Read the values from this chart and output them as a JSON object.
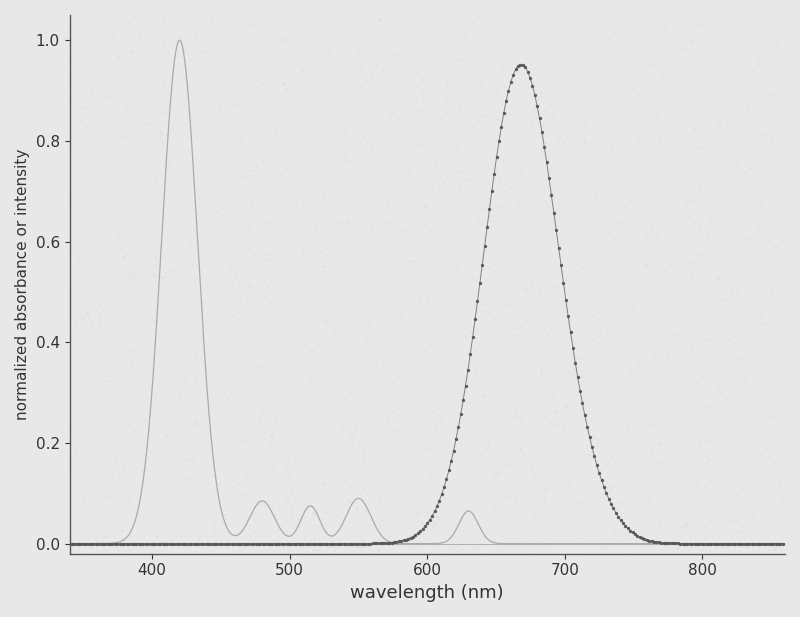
{
  "title": "",
  "xlabel": "wavelength (nm)",
  "ylabel": "normalized absorbance or intensity",
  "xlim": [
    340,
    860
  ],
  "ylim": [
    -0.02,
    1.05
  ],
  "xticks": [
    400,
    500,
    600,
    700,
    800
  ],
  "yticks": [
    0.0,
    0.2,
    0.4,
    0.6,
    0.8,
    1.0
  ],
  "curve1_color": "#aaaaaa",
  "curve2_color": "#555555",
  "bg_color": "#e8e8e8",
  "figsize": [
    8.0,
    6.17
  ],
  "dpi": 100,
  "soret_peak": 420,
  "soret_sigma": 13,
  "soret_amp": 1.0,
  "qband1_peak": 480,
  "qband1_sigma": 9,
  "qband1_amp": 0.085,
  "qband2_peak": 515,
  "qband2_sigma": 7,
  "qband2_amp": 0.075,
  "qband3_peak": 550,
  "qband3_sigma": 9,
  "qband3_amp": 0.09,
  "qband4_peak": 630,
  "qband4_sigma": 7,
  "qband4_amp": 0.065,
  "emit_peak": 668,
  "emit_sigma": 27,
  "emit_amp": 0.95,
  "emit_sigma2": 20,
  "emit_amp2": 0.04
}
